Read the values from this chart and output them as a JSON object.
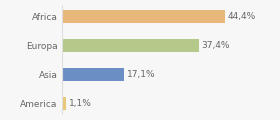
{
  "categories": [
    "America",
    "Asia",
    "Europa",
    "Africa"
  ],
  "values": [
    1.1,
    17.1,
    37.4,
    44.4
  ],
  "labels": [
    "1,1%",
    "17,1%",
    "37,4%",
    "44,4%"
  ],
  "bar_colors": [
    "#e8c97a",
    "#6b8fc4",
    "#b5c98a",
    "#e8b87a"
  ],
  "background_color": "#f7f7f7",
  "xlim": [
    0,
    58
  ],
  "bar_height": 0.45,
  "label_fontsize": 6.5,
  "tick_fontsize": 6.5,
  "label_color": "#666666",
  "tick_color": "#666666",
  "spine_color": "#dddddd"
}
